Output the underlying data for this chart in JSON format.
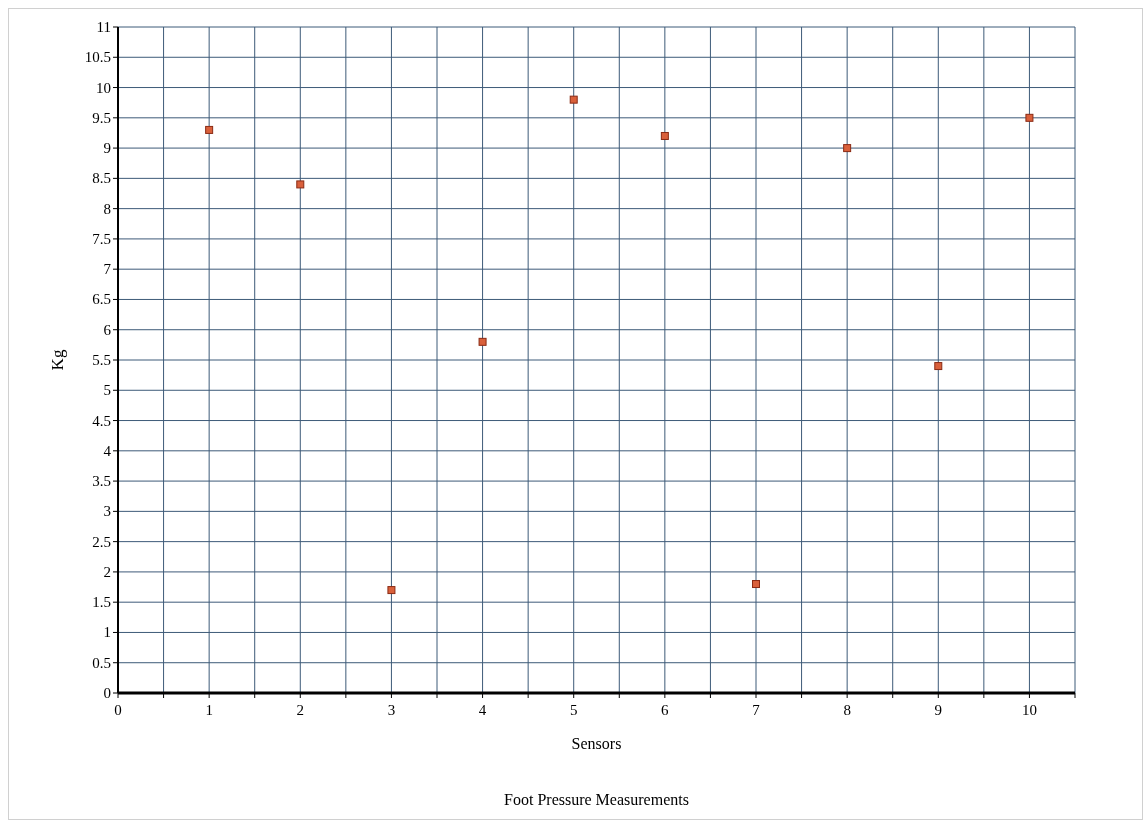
{
  "chart_data": {
    "type": "scatter",
    "title": "Foot Pressure Measurements",
    "xlabel": "Sensors",
    "ylabel": "Kg",
    "x": [
      1,
      2,
      3,
      4,
      5,
      6,
      7,
      8,
      9,
      10
    ],
    "series": [
      {
        "color": "#d9603b",
        "values": [
          9.3,
          8.4,
          1.7,
          5.8,
          9.8,
          9.2,
          1.8,
          9.0,
          5.4,
          9.5
        ]
      }
    ],
    "xlim": [
      0,
      10.5
    ],
    "xticks": [
      0,
      {
        "value": 0.5,
        "label": null
      },
      1,
      {
        "value": 1.5,
        "label": null
      },
      2,
      {
        "value": 2.5,
        "label": null
      },
      3,
      {
        "value": 3.5,
        "label": null
      },
      4,
      {
        "value": 4.5,
        "label": null
      },
      5,
      {
        "value": 5.5,
        "label": null
      },
      6,
      {
        "value": 6.5,
        "label": null
      },
      7,
      {
        "value": 7.5,
        "label": null
      },
      8,
      {
        "value": 8.5,
        "label": null
      },
      9,
      {
        "value": 9.5,
        "label": null
      },
      10,
      {
        "value": 10.5,
        "label": null
      }
    ],
    "ylim": [
      0,
      11
    ],
    "yticks": [
      0,
      0.5,
      1,
      1.5,
      2,
      2.5,
      3,
      3.5,
      4,
      4.5,
      5,
      5.5,
      6,
      6.5,
      7,
      7.5,
      8,
      8.5,
      9,
      9.5,
      10,
      10.5,
      11
    ],
    "grid": true,
    "marker": "square"
  }
}
